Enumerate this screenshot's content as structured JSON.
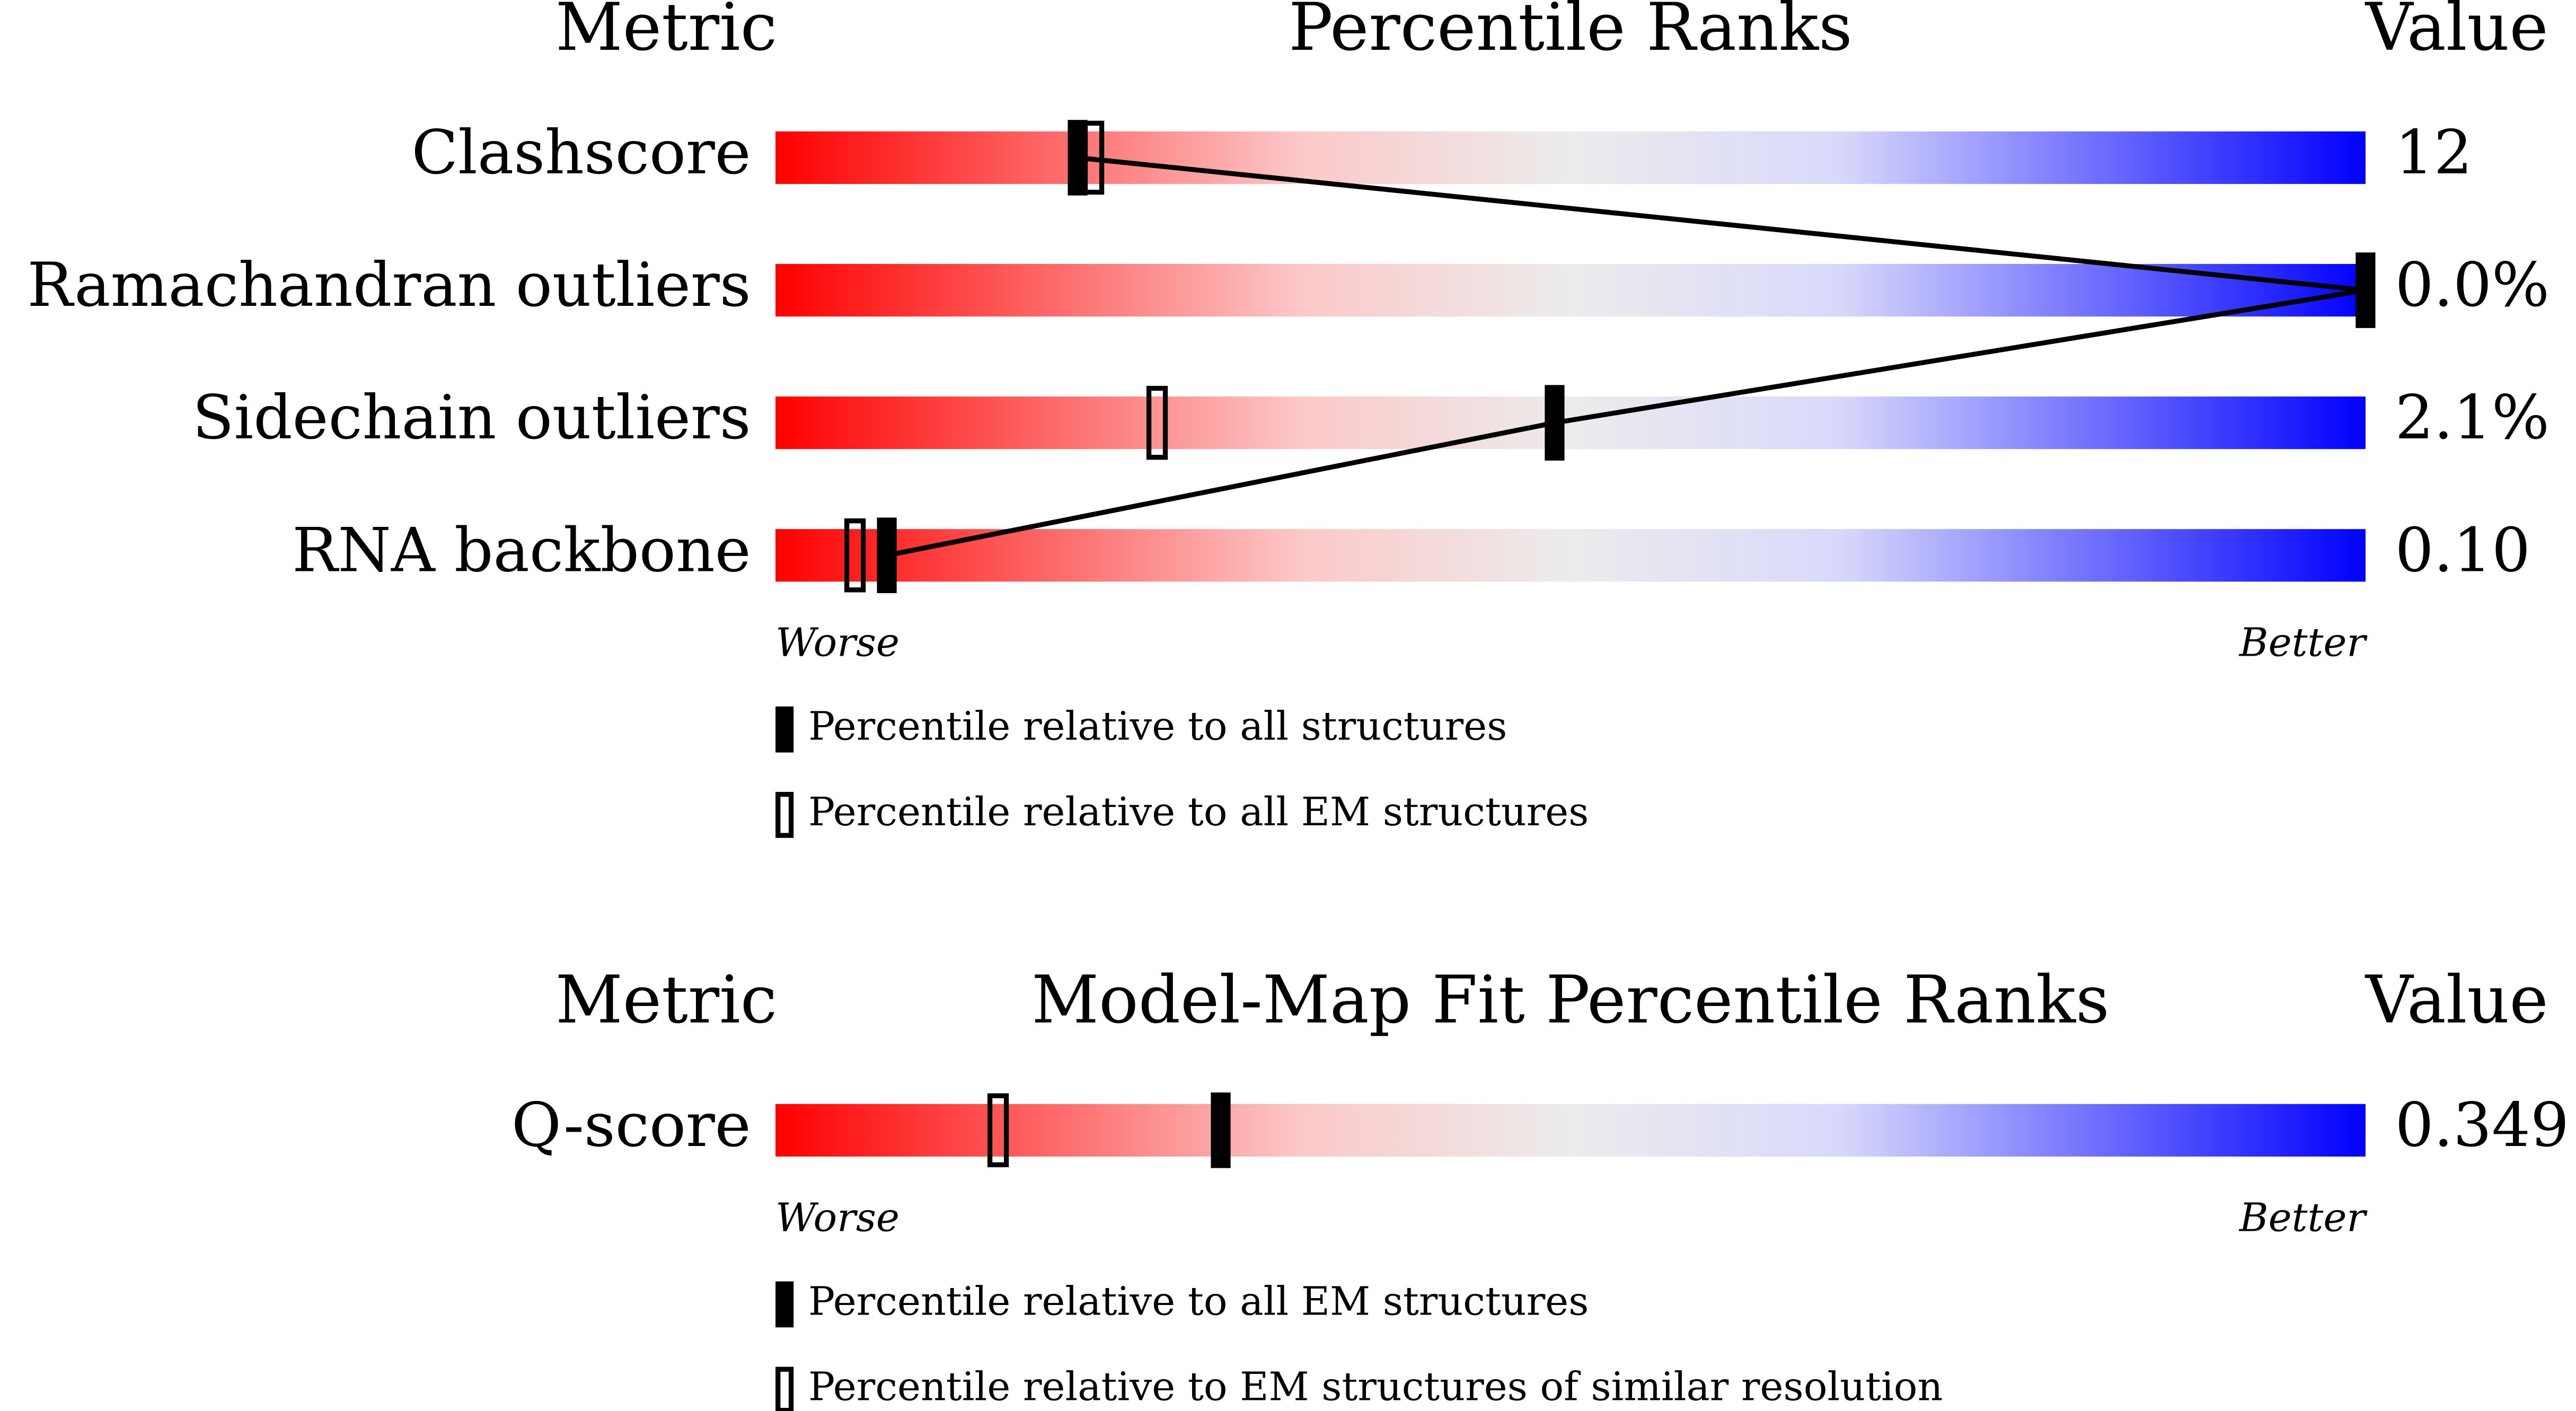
{
  "chart_data": [
    {
      "type": "percentile",
      "header": {
        "metric": "Metric",
        "title": "Percentile Ranks",
        "value": "Value"
      },
      "categories": [
        "Clashscore",
        "Ramachandran outliers",
        "Sidechain outliers",
        "RNA backbone"
      ],
      "metric_values": [
        "12",
        "0.0%",
        "2.1%",
        "0.10"
      ],
      "series": [
        {
          "name": "Percentile relative to all structures",
          "filled": true,
          "values": [
            19,
            100,
            49,
            7
          ]
        },
        {
          "name": "Percentile relative to all EM structures",
          "filled": false,
          "values": [
            20,
            null,
            24,
            5
          ]
        }
      ],
      "xlim": [
        0,
        100
      ],
      "low_label": "Worse",
      "high_label": "Better"
    },
    {
      "type": "percentile",
      "header": {
        "metric": "Metric",
        "title": "Model-Map Fit Percentile Ranks",
        "value": "Value"
      },
      "categories": [
        "Q-score"
      ],
      "metric_values": [
        "0.349"
      ],
      "series": [
        {
          "name": "Percentile relative to all EM structures",
          "filled": true,
          "values": [
            28
          ]
        },
        {
          "name": "Percentile relative to EM structures of similar resolution",
          "filled": false,
          "values": [
            14
          ]
        }
      ],
      "xlim": [
        0,
        100
      ],
      "low_label": "Worse",
      "high_label": "Better"
    }
  ]
}
